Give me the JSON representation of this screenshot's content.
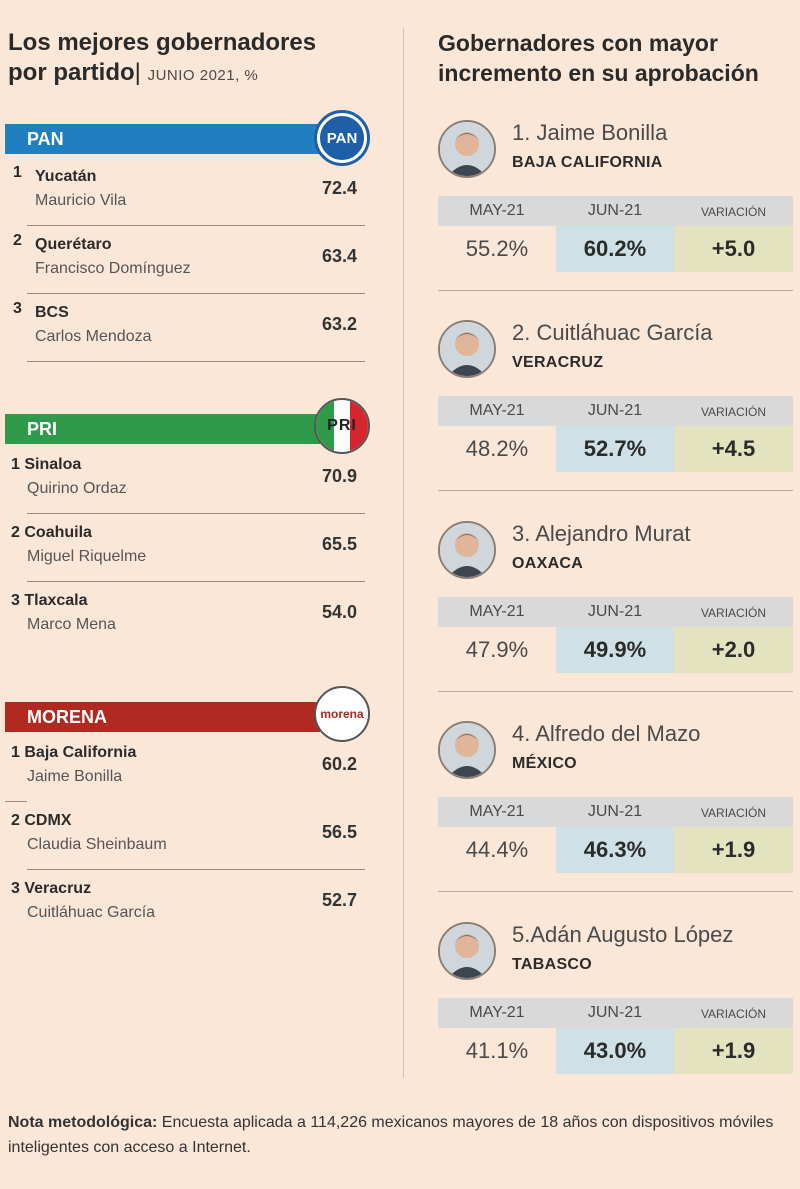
{
  "left": {
    "title_line1": "Los mejores gobernadores",
    "title_line2": "por partido",
    "subtitle": "JUNIO 2021, %",
    "parties": [
      {
        "name": "PAN",
        "color": "#1f7fc0",
        "logo_text": "PAN",
        "rows": [
          {
            "num": "1",
            "state": "Yucatán",
            "governor": "Mauricio Vila",
            "value": "72.4"
          },
          {
            "num": "2",
            "state": "Querétaro",
            "governor": "Francisco Domínguez",
            "value": "63.4"
          },
          {
            "num": "3",
            "state": "BCS",
            "governor": "Carlos Mendoza",
            "value": "63.2"
          }
        ]
      },
      {
        "name": "PRI",
        "color": "#2e9a4a",
        "logo_text": "PRI",
        "rows": [
          {
            "num": "1",
            "state": "Sinaloa",
            "governor": "Quirino Ordaz",
            "value": "70.9"
          },
          {
            "num": "2",
            "state": "Coahuila",
            "governor": "Miguel Riquelme",
            "value": "65.5"
          },
          {
            "num": "3",
            "state": "Tlaxcala",
            "governor": "Marco Mena",
            "value": "54.0"
          }
        ]
      },
      {
        "name": "MORENA",
        "color": "#b02a22",
        "logo_text": "morena",
        "rows": [
          {
            "num": "1",
            "state": "Baja California",
            "governor": "Jaime Bonilla",
            "value": "60.2"
          },
          {
            "num": "2",
            "state": "CDMX",
            "governor": "Claudia Sheinbaum",
            "value": "56.5"
          },
          {
            "num": "3",
            "state": "Veracruz",
            "governor": "Cuitláhuac García",
            "value": "52.7"
          }
        ]
      }
    ]
  },
  "right": {
    "title_line1": "Gobernadores con mayor",
    "title_line2": "incremento en su aprobación",
    "col_may": "MAY-21",
    "col_jun": "JUN-21",
    "col_var": "VARIACIÓN",
    "governors": [
      {
        "name": "1. Jaime Bonilla",
        "state": "BAJA CALIFORNIA",
        "may": "55.2%",
        "jun": "60.2%",
        "var": "+5.0"
      },
      {
        "name": "2. Cuitláhuac García",
        "state": "VERACRUZ",
        "may": "48.2%",
        "jun": "52.7%",
        "var": "+4.5"
      },
      {
        "name": "3. Alejandro Murat",
        "state": "OAXACA",
        "may": "47.9%",
        "jun": "49.9%",
        "var": "+2.0"
      },
      {
        "name": "4. Alfredo del Mazo",
        "state": "MÉXICO",
        "may": "44.4%",
        "jun": "46.3%",
        "var": "+1.9"
      },
      {
        "name": "5.Adán Augusto López",
        "state": "TABASCO",
        "may": "41.1%",
        "jun": "43.0%",
        "var": "+1.9"
      }
    ]
  },
  "note": {
    "label": "Nota metodológica:",
    "text": " Encuesta aplicada a 114,226 mexicanos mayores de 18 años con dispositivos móviles inteligentes con acceso a Internet."
  }
}
